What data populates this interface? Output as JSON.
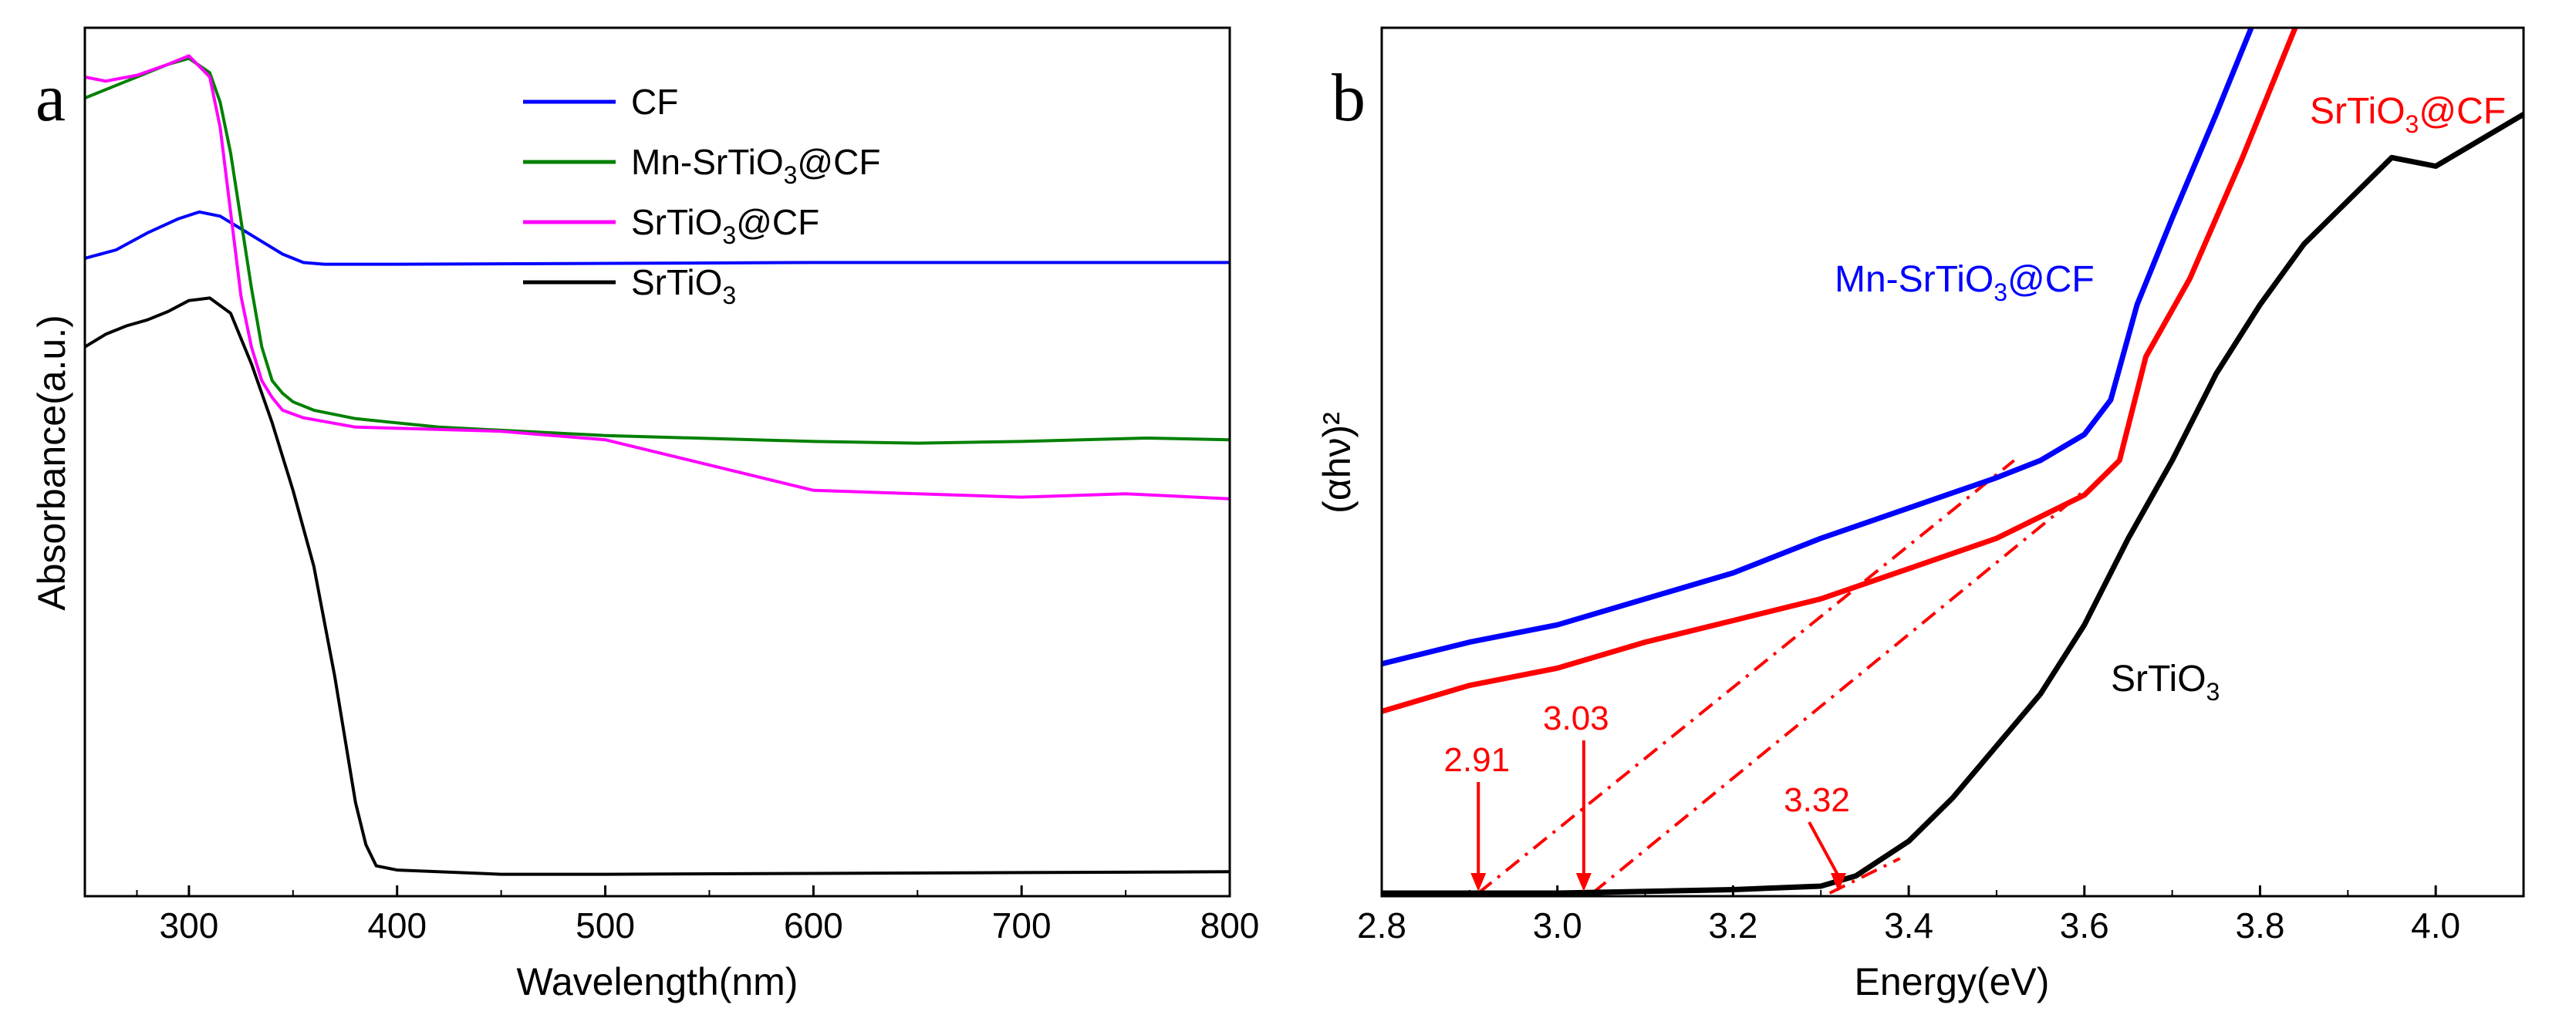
{
  "chart_data": [
    {
      "type": "line",
      "panel_label": "a",
      "xlabel": "Wavelength(nm)",
      "ylabel": "Absorbance(a.u.)",
      "xlim": [
        250,
        800
      ],
      "ylim": [
        0,
        1
      ],
      "y_ticks_shown": false,
      "x_ticks": [
        300,
        400,
        500,
        600,
        700,
        800
      ],
      "x_tick_labels": [
        "300",
        "400",
        "500",
        "600",
        "700",
        "800"
      ],
      "legend_position": "top-right",
      "legend_labels": [
        {
          "base": "CF",
          "sub": "",
          "rest": ""
        },
        {
          "base": "Mn-SrTiO",
          "sub": "3",
          "rest": "@CF"
        },
        {
          "base": "SrTiO",
          "sub": "3",
          "rest": "@CF"
        },
        {
          "base": "SrTiO",
          "sub": "3",
          "rest": ""
        }
      ],
      "series": [
        {
          "name": "CF",
          "color": "#0000ff",
          "x": [
            250,
            265,
            280,
            295,
            305,
            315,
            325,
            335,
            345,
            355,
            365,
            400,
            500,
            600,
            700,
            800
          ],
          "y": [
            0.745,
            0.755,
            0.775,
            0.792,
            0.8,
            0.795,
            0.78,
            0.765,
            0.75,
            0.74,
            0.738,
            0.738,
            0.739,
            0.74,
            0.74,
            0.74
          ]
        },
        {
          "name": "Mn-SrTiO3@CF",
          "color": "#008000",
          "x": [
            250,
            260,
            275,
            290,
            300,
            310,
            315,
            320,
            325,
            330,
            335,
            340,
            345,
            350,
            360,
            380,
            420,
            500,
            600,
            650,
            700,
            760,
            800
          ],
          "y": [
            0.935,
            0.945,
            0.96,
            0.975,
            0.982,
            0.965,
            0.93,
            0.87,
            0.79,
            0.71,
            0.64,
            0.6,
            0.585,
            0.575,
            0.565,
            0.555,
            0.545,
            0.535,
            0.528,
            0.526,
            0.528,
            0.532,
            0.53
          ]
        },
        {
          "name": "SrTiO3@CF",
          "color": "#ff00ff",
          "x": [
            250,
            260,
            275,
            290,
            300,
            310,
            315,
            320,
            325,
            330,
            335,
            340,
            345,
            355,
            380,
            450,
            500,
            600,
            700,
            750,
            800
          ],
          "y": [
            0.96,
            0.955,
            0.962,
            0.975,
            0.985,
            0.96,
            0.9,
            0.8,
            0.7,
            0.64,
            0.6,
            0.58,
            0.565,
            0.556,
            0.545,
            0.54,
            0.53,
            0.47,
            0.462,
            0.466,
            0.46
          ]
        },
        {
          "name": "SrTiO3",
          "color": "#000000",
          "x": [
            250,
            260,
            270,
            280,
            290,
            300,
            310,
            320,
            330,
            340,
            350,
            360,
            370,
            380,
            385,
            390,
            400,
            450,
            500,
            600,
            700,
            800
          ],
          "y": [
            0.64,
            0.655,
            0.665,
            0.672,
            0.682,
            0.695,
            0.698,
            0.68,
            0.62,
            0.55,
            0.47,
            0.38,
            0.25,
            0.1,
            0.05,
            0.025,
            0.02,
            0.015,
            0.015,
            0.016,
            0.017,
            0.018
          ]
        }
      ]
    },
    {
      "type": "line",
      "panel_label": "b",
      "xlabel": "Energy(eV)",
      "ylabel": "(αhν)²",
      "xlim": [
        2.8,
        4.1
      ],
      "ylim": [
        0,
        1
      ],
      "y_ticks_shown": false,
      "x_ticks": [
        2.8,
        3.0,
        3.2,
        3.4,
        3.6,
        3.8,
        4.0
      ],
      "x_tick_labels": [
        "2.8",
        "3.0",
        "3.2",
        "3.4",
        "3.6",
        "3.8",
        "4.0"
      ],
      "curve_labels": [
        {
          "base": "Mn-SrTiO",
          "sub": "3",
          "rest": "@CF",
          "color": "#0000ff"
        },
        {
          "base": "SrTiO",
          "sub": "3",
          "rest": "@CF",
          "color": "#ff0000"
        },
        {
          "base": "SrTiO",
          "sub": "3",
          "rest": "",
          "color": "#000000"
        }
      ],
      "series": [
        {
          "name": "Mn-SrTiO3@CF",
          "color": "#0000ff",
          "x": [
            2.8,
            2.9,
            3.0,
            3.1,
            3.2,
            3.3,
            3.4,
            3.5,
            3.55,
            3.6,
            3.63,
            3.66,
            3.7,
            3.75,
            3.79
          ],
          "y": [
            0.265,
            0.29,
            0.31,
            0.34,
            0.37,
            0.41,
            0.445,
            0.48,
            0.5,
            0.53,
            0.57,
            0.68,
            0.78,
            0.9,
            1.0
          ]
        },
        {
          "name": "SrTiO3@CF",
          "color": "#ff0000",
          "x": [
            2.8,
            2.9,
            3.0,
            3.1,
            3.2,
            3.3,
            3.4,
            3.5,
            3.6,
            3.64,
            3.67,
            3.72,
            3.78,
            3.84
          ],
          "y": [
            0.21,
            0.24,
            0.26,
            0.29,
            0.315,
            0.34,
            0.375,
            0.41,
            0.46,
            0.5,
            0.62,
            0.71,
            0.85,
            1.0
          ]
        },
        {
          "name": "SrTiO3",
          "color": "#000000",
          "x": [
            2.8,
            3.0,
            3.2,
            3.3,
            3.34,
            3.4,
            3.45,
            3.5,
            3.55,
            3.6,
            3.65,
            3.7,
            3.75,
            3.8,
            3.85,
            3.9,
            3.95,
            4.0,
            4.05,
            4.1
          ],
          "y": [
            0.0,
            0.0,
            0.004,
            0.008,
            0.02,
            0.06,
            0.11,
            0.17,
            0.23,
            0.31,
            0.41,
            0.5,
            0.6,
            0.68,
            0.75,
            0.8,
            0.85,
            0.84,
            0.87,
            0.9
          ]
        }
      ],
      "tangent_lines": [
        {
          "color": "#ff0000",
          "x": [
            2.91,
            3.52
          ],
          "y": [
            0.0,
            0.5
          ]
        },
        {
          "color": "#ff0000",
          "x": [
            3.04,
            3.6
          ],
          "y": [
            0.0,
            0.465
          ]
        },
        {
          "color": "#ff0000",
          "x": [
            3.31,
            3.39
          ],
          "y": [
            0.0,
            0.04
          ]
        }
      ],
      "band_gap_annotations": [
        {
          "label": "2.91",
          "value": 2.91,
          "color": "#ff0000"
        },
        {
          "label": "3.03",
          "value": 3.03,
          "color": "#ff0000"
        },
        {
          "label": "3.32",
          "value": 3.32,
          "color": "#ff0000"
        }
      ]
    }
  ]
}
